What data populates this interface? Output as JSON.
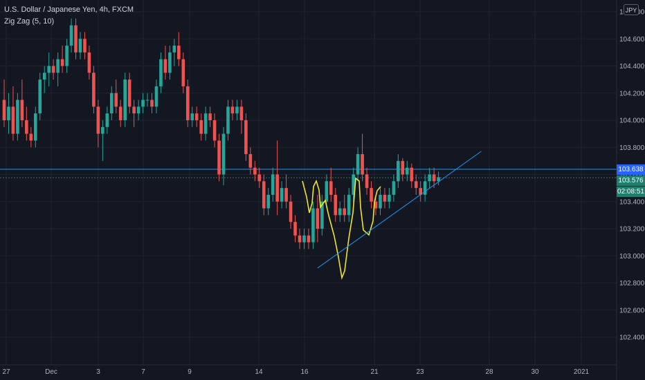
{
  "legend": {
    "symbol": "U.S. Dollar / Japanese Yen, 4h, FXCM",
    "indicator": "Zig Zag (5, 10)"
  },
  "currency": "JPY",
  "price_tags": {
    "last_price": "103.638",
    "current_price": "103.576",
    "countdown": "02:08:51"
  },
  "colors": {
    "background": "#131722",
    "grid": "#1f2431",
    "up": "#26a69a",
    "down": "#ef5350",
    "hline": "#2196f3",
    "drawing": "#f0e52b",
    "axis_text": "#b2b5be"
  },
  "chart_data": {
    "type": "candlestick",
    "ylim": [
      102.3,
      104.75
    ],
    "y_ticks": [
      "102.400",
      "102.600",
      "102.800",
      "103.000",
      "103.200",
      "103.400",
      "103.600",
      "103.800",
      "104.000",
      "104.200",
      "104.400",
      "104.600",
      "104.800"
    ],
    "x_labels": [
      "27",
      "Dec",
      "3",
      "7",
      "9",
      "14",
      "16",
      "21",
      "23",
      "28",
      "30",
      "2021"
    ],
    "horizontal_lines": [
      103.638,
      103.576
    ],
    "trendline": {
      "from": {
        "candle": 70,
        "price": 102.91
      },
      "to": {
        "candle": 103,
        "price": 103.74
      }
    },
    "candles": [
      [
        104.15,
        104.3,
        103.95,
        104.0
      ],
      [
        104.0,
        104.2,
        103.9,
        104.1
      ],
      [
        104.1,
        104.25,
        103.85,
        103.9
      ],
      [
        103.9,
        104.2,
        103.85,
        104.15
      ],
      [
        104.15,
        104.3,
        103.95,
        104.0
      ],
      [
        104.0,
        104.1,
        103.85,
        103.9
      ],
      [
        103.9,
        103.95,
        103.8,
        103.85
      ],
      [
        103.85,
        104.1,
        103.8,
        104.05
      ],
      [
        104.05,
        104.35,
        104.0,
        104.3
      ],
      [
        104.3,
        104.4,
        104.2,
        104.35
      ],
      [
        104.35,
        104.5,
        104.25,
        104.4
      ],
      [
        104.4,
        104.45,
        104.3,
        104.35
      ],
      [
        104.35,
        104.5,
        104.25,
        104.45
      ],
      [
        104.45,
        104.55,
        104.35,
        104.4
      ],
      [
        104.4,
        104.6,
        104.35,
        104.55
      ],
      [
        104.55,
        104.75,
        104.5,
        104.7
      ],
      [
        104.7,
        104.75,
        104.45,
        104.5
      ],
      [
        104.5,
        104.65,
        104.45,
        104.6
      ],
      [
        104.6,
        104.65,
        104.45,
        104.5
      ],
      [
        104.5,
        104.55,
        104.3,
        104.35
      ],
      [
        104.35,
        104.4,
        104.05,
        104.1
      ],
      [
        104.1,
        104.15,
        103.8,
        103.9
      ],
      [
        103.9,
        104.0,
        103.7,
        103.95
      ],
      [
        103.95,
        104.1,
        103.9,
        104.05
      ],
      [
        104.05,
        104.25,
        104.0,
        104.2
      ],
      [
        104.2,
        104.3,
        104.05,
        104.1
      ],
      [
        104.1,
        104.15,
        103.95,
        104.0
      ],
      [
        104.0,
        104.35,
        103.95,
        104.3
      ],
      [
        104.3,
        104.35,
        104.05,
        104.1
      ],
      [
        104.1,
        104.15,
        103.95,
        104.05
      ],
      [
        104.05,
        104.15,
        104.0,
        104.1
      ],
      [
        104.1,
        104.2,
        104.05,
        104.15
      ],
      [
        104.15,
        104.2,
        104.1,
        104.15
      ],
      [
        104.15,
        104.2,
        104.05,
        104.1
      ],
      [
        104.1,
        104.3,
        104.05,
        104.25
      ],
      [
        104.25,
        104.5,
        104.2,
        104.45
      ],
      [
        104.45,
        104.55,
        104.3,
        104.35
      ],
      [
        104.35,
        104.55,
        104.3,
        104.5
      ],
      [
        104.5,
        104.6,
        104.4,
        104.55
      ],
      [
        104.55,
        104.65,
        104.4,
        104.45
      ],
      [
        104.45,
        104.5,
        104.2,
        104.25
      ],
      [
        104.25,
        104.3,
        103.95,
        104.0
      ],
      [
        104.0,
        104.1,
        103.95,
        104.05
      ],
      [
        104.05,
        104.1,
        103.95,
        104.0
      ],
      [
        104.0,
        104.05,
        103.85,
        103.9
      ],
      [
        103.9,
        104.1,
        103.85,
        104.05
      ],
      [
        104.05,
        104.1,
        103.95,
        104.0
      ],
      [
        104.0,
        104.05,
        103.8,
        103.85
      ],
      [
        103.85,
        103.9,
        103.55,
        103.6
      ],
      [
        103.6,
        103.95,
        103.52,
        103.9
      ],
      [
        103.9,
        104.15,
        103.85,
        104.1
      ],
      [
        104.1,
        104.15,
        104.0,
        104.05
      ],
      [
        104.05,
        104.15,
        104.0,
        104.1
      ],
      [
        104.1,
        104.15,
        103.9,
        104.0
      ],
      [
        104.0,
        104.05,
        103.7,
        103.75
      ],
      [
        103.75,
        103.8,
        103.6,
        103.65
      ],
      [
        103.65,
        103.7,
        103.55,
        103.6
      ],
      [
        103.6,
        103.65,
        103.5,
        103.55
      ],
      [
        103.55,
        103.6,
        103.3,
        103.35
      ],
      [
        103.35,
        103.5,
        103.3,
        103.45
      ],
      [
        103.45,
        103.65,
        103.4,
        103.6
      ],
      [
        103.6,
        103.85,
        103.3,
        103.4
      ],
      [
        103.4,
        103.55,
        103.35,
        103.5
      ],
      [
        103.5,
        103.6,
        103.35,
        103.4
      ],
      [
        103.4,
        103.45,
        103.2,
        103.25
      ],
      [
        103.25,
        103.3,
        103.1,
        103.15
      ],
      [
        103.15,
        103.2,
        103.05,
        103.1
      ],
      [
        103.1,
        103.2,
        103.05,
        103.15
      ],
      [
        103.15,
        103.2,
        103.05,
        103.1
      ],
      [
        103.1,
        103.4,
        103.05,
        103.35
      ],
      [
        103.35,
        103.45,
        103.1,
        103.2
      ],
      [
        103.2,
        103.45,
        103.15,
        103.4
      ],
      [
        103.4,
        103.6,
        103.35,
        103.55
      ],
      [
        103.55,
        103.65,
        103.4,
        103.45
      ],
      [
        103.45,
        103.5,
        103.25,
        103.3
      ],
      [
        103.3,
        103.4,
        103.25,
        103.35
      ],
      [
        103.35,
        103.45,
        103.25,
        103.3
      ],
      [
        103.3,
        103.5,
        103.25,
        103.45
      ],
      [
        103.45,
        103.65,
        103.4,
        103.6
      ],
      [
        103.6,
        103.8,
        103.55,
        103.75
      ],
      [
        103.75,
        103.9,
        103.55,
        103.6
      ],
      [
        103.6,
        103.65,
        103.45,
        103.5
      ],
      [
        103.5,
        103.55,
        103.35,
        103.4
      ],
      [
        103.4,
        103.45,
        103.3,
        103.35
      ],
      [
        103.35,
        103.5,
        103.3,
        103.45
      ],
      [
        103.45,
        103.5,
        103.35,
        103.4
      ],
      [
        103.4,
        103.5,
        103.35,
        103.45
      ],
      [
        103.45,
        103.6,
        103.4,
        103.55
      ],
      [
        103.55,
        103.75,
        103.5,
        103.7
      ],
      [
        103.7,
        103.72,
        103.55,
        103.6
      ],
      [
        103.6,
        103.7,
        103.55,
        103.65
      ],
      [
        103.65,
        103.68,
        103.5,
        103.55
      ],
      [
        103.55,
        103.6,
        103.45,
        103.5
      ],
      [
        103.5,
        103.55,
        103.4,
        103.45
      ],
      [
        103.45,
        103.6,
        103.4,
        103.55
      ],
      [
        103.55,
        103.65,
        103.5,
        103.6
      ],
      [
        103.6,
        103.65,
        103.5,
        103.55
      ],
      [
        103.55,
        103.62,
        103.52,
        103.58
      ]
    ]
  }
}
